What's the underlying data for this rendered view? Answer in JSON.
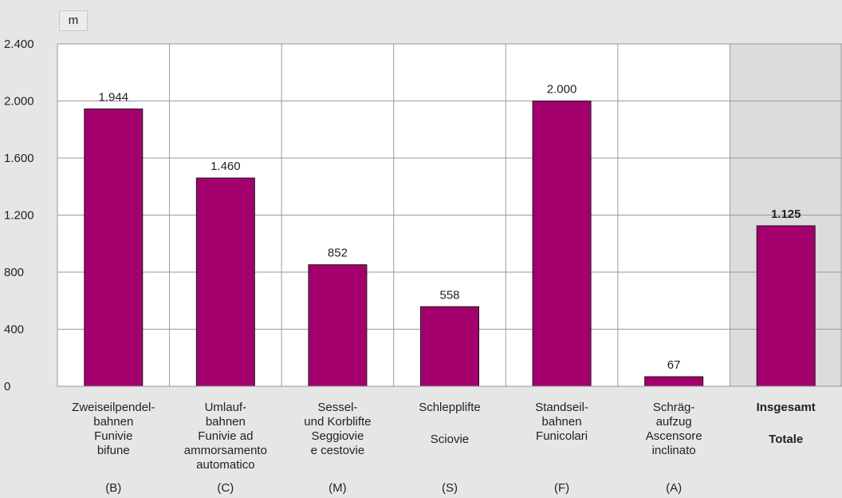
{
  "chart_data": {
    "type": "bar",
    "unit": "m",
    "ylim": [
      0,
      2400
    ],
    "yticks": [
      {
        "value": 0,
        "label": "0"
      },
      {
        "value": 400,
        "label": "400"
      },
      {
        "value": 800,
        "label": "800"
      },
      {
        "value": 1200,
        "label": "1.200"
      },
      {
        "value": 1600,
        "label": "1.600"
      },
      {
        "value": 2000,
        "label": "2.000"
      },
      {
        "value": 2400,
        "label": "2.400"
      }
    ],
    "grid": true,
    "bar_color": "#a3006e",
    "highlight_column_color": "#dcdcdc",
    "categories": [
      {
        "lines_de": [
          "Zweiseilpendel-",
          "bahnen"
        ],
        "lines_it": [
          "Funivie",
          "bifune"
        ],
        "code": "(B)",
        "value": 1944,
        "label": "1.944",
        "total": false
      },
      {
        "lines_de": [
          "Umlauf-",
          "bahnen"
        ],
        "lines_it": [
          "Funivie ad",
          "ammorsamento",
          "automatico"
        ],
        "code": "(C)",
        "value": 1460,
        "label": "1.460",
        "total": false
      },
      {
        "lines_de": [
          "Sessel-",
          "und Korblifte"
        ],
        "lines_it": [
          "Seggiovie",
          "e cestovie"
        ],
        "code": "(M)",
        "value": 852,
        "label": "852",
        "total": false
      },
      {
        "lines_de": [
          "Schlepplifte"
        ],
        "lines_it": [
          "Sciovie"
        ],
        "code": "(S)",
        "value": 558,
        "label": "558",
        "total": false
      },
      {
        "lines_de": [
          "Standseil-",
          "bahnen"
        ],
        "lines_it": [
          "Funicolari"
        ],
        "code": "(F)",
        "value": 2000,
        "label": "2.000",
        "total": false
      },
      {
        "lines_de": [
          "Schräg-",
          "aufzug"
        ],
        "lines_it": [
          "Ascensore",
          "inclinato"
        ],
        "code": "(A)",
        "value": 67,
        "label": "67",
        "total": false
      },
      {
        "lines_de": [
          "Insgesamt"
        ],
        "lines_it": [
          "Totale"
        ],
        "code": "",
        "value": 1125,
        "label": "1.125",
        "total": true
      }
    ]
  }
}
